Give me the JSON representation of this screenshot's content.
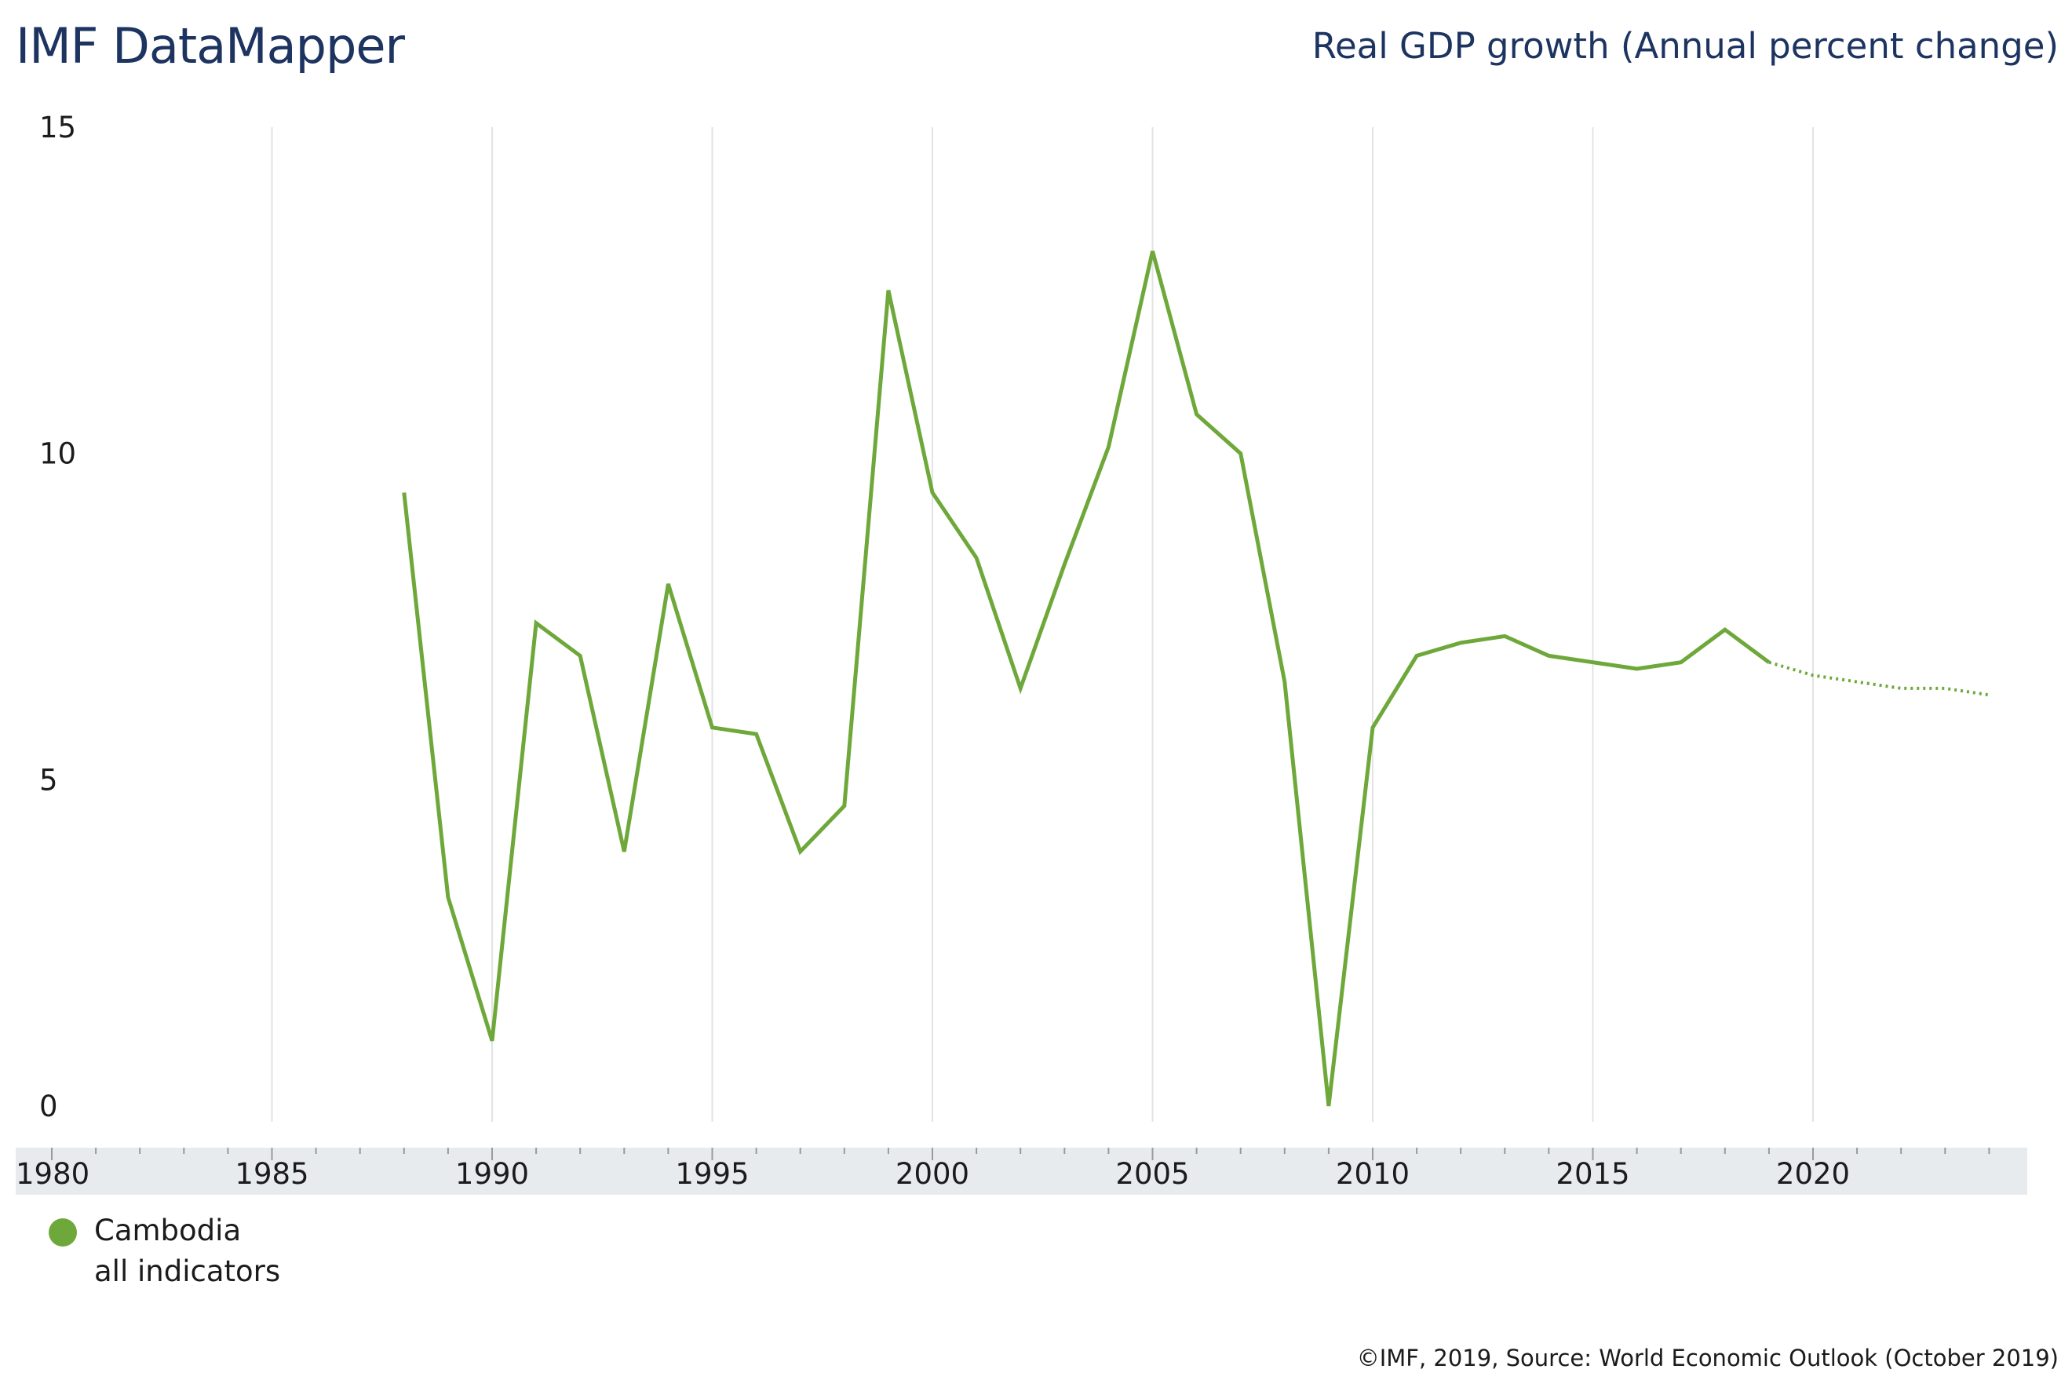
{
  "header": {
    "brand": "IMF DataMapper",
    "indicator_title": "Real GDP growth (Annual percent change)"
  },
  "legend": {
    "country": "Cambodia",
    "sub_label": "all indicators"
  },
  "footer": {
    "credit": "©IMF, 2019, Source: World Economic Outlook (October 2019)"
  },
  "colors": {
    "series": "#6fa83a",
    "axis_band": "#e8ebee",
    "grid": "#e3e3e3",
    "title": "#1d3461"
  },
  "chart_data": {
    "type": "line",
    "title": "Real GDP growth (Annual percent change)",
    "xlim": [
      1980,
      2024
    ],
    "ylim": [
      0,
      15
    ],
    "x_ticks": [
      1980,
      1985,
      1990,
      1995,
      2000,
      2005,
      2010,
      2015,
      2020
    ],
    "y_ticks": [
      0,
      5,
      10,
      15
    ],
    "grid": "vertical",
    "legend_position": "bottom-left",
    "series": [
      {
        "name": "Cambodia",
        "x": [
          1988,
          1989,
          1990,
          1991,
          1992,
          1993,
          1994,
          1995,
          1996,
          1997,
          1998,
          1999,
          2000,
          2001,
          2002,
          2003,
          2004,
          2005,
          2006,
          2007,
          2008,
          2009,
          2010,
          2011,
          2012,
          2013,
          2014,
          2015,
          2016,
          2017,
          2018,
          2019
        ],
        "values": [
          9.4,
          3.2,
          1.0,
          7.4,
          6.9,
          3.9,
          8.0,
          5.8,
          5.7,
          3.9,
          4.6,
          12.5,
          9.4,
          8.4,
          6.4,
          8.3,
          10.1,
          13.1,
          10.6,
          10.0,
          6.5,
          0.0,
          5.8,
          6.9,
          7.1,
          7.2,
          6.9,
          6.8,
          6.7,
          6.8,
          7.3,
          6.8
        ],
        "projection_x": [
          2019,
          2020,
          2021,
          2022,
          2023,
          2024
        ],
        "projection_values": [
          6.8,
          6.6,
          6.5,
          6.4,
          6.4,
          6.3
        ]
      }
    ]
  }
}
